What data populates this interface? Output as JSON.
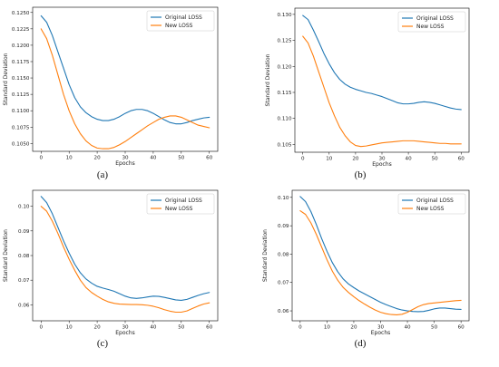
{
  "chart_data": [
    {
      "panel": "a",
      "caption": "(a)",
      "type": "line",
      "xlabel": "Epochs",
      "ylabel": "Standard Deviation",
      "xlim": [
        -3,
        63
      ],
      "ylim": [
        0.1038,
        0.1258
      ],
      "xticks": [
        0,
        10,
        20,
        30,
        40,
        50,
        60
      ],
      "yticks": [
        0.105,
        0.1075,
        0.11,
        0.1125,
        0.115,
        0.1175,
        0.12,
        0.1225,
        0.125
      ],
      "ytick_labels": [
        "0.1050",
        "0.1075",
        "0.1100",
        "0.1125",
        "0.1150",
        "0.1175",
        "0.1200",
        "0.1225",
        "0.1250"
      ],
      "legend": "top-right",
      "series": [
        {
          "name": "Original LOSS",
          "color": "#1f77b4",
          "x": [
            0,
            2,
            4,
            6,
            8,
            10,
            12,
            14,
            16,
            18,
            20,
            22,
            24,
            26,
            28,
            30,
            32,
            34,
            36,
            38,
            40,
            42,
            44,
            46,
            48,
            50,
            52,
            54,
            56,
            58,
            60
          ],
          "y": [
            0.1245,
            0.1235,
            0.1215,
            0.119,
            0.1165,
            0.114,
            0.112,
            0.1106,
            0.1097,
            0.1091,
            0.1087,
            0.1085,
            0.1085,
            0.1087,
            0.1091,
            0.1096,
            0.11,
            0.1102,
            0.1102,
            0.11,
            0.1096,
            0.1091,
            0.1086,
            0.1082,
            0.108,
            0.108,
            0.1082,
            0.1085,
            0.1087,
            0.1089,
            0.109
          ]
        },
        {
          "name": "New LOSS",
          "color": "#ff7f0e",
          "x": [
            0,
            2,
            4,
            6,
            8,
            10,
            12,
            14,
            16,
            18,
            20,
            22,
            24,
            26,
            28,
            30,
            32,
            34,
            36,
            38,
            40,
            42,
            44,
            46,
            48,
            50,
            52,
            54,
            56,
            58,
            60
          ],
          "y": [
            0.1225,
            0.121,
            0.1185,
            0.1155,
            0.1125,
            0.11,
            0.108,
            0.1065,
            0.1054,
            0.1047,
            0.1043,
            0.1042,
            0.1042,
            0.1044,
            0.1048,
            0.1053,
            0.1059,
            0.1065,
            0.1071,
            0.1077,
            0.1082,
            0.1087,
            0.109,
            0.1092,
            0.1092,
            0.109,
            0.1086,
            0.1082,
            0.1078,
            0.1076,
            0.1074
          ]
        }
      ]
    },
    {
      "panel": "b",
      "caption": "(b)",
      "type": "line",
      "xlabel": "Epochs",
      "ylabel": "Standard Deviation",
      "xlim": [
        -3,
        63
      ],
      "ylim": [
        0.1035,
        0.1312
      ],
      "xticks": [
        0,
        10,
        20,
        30,
        40,
        50,
        60
      ],
      "yticks": [
        0.105,
        0.11,
        0.115,
        0.12,
        0.125,
        0.13
      ],
      "ytick_labels": [
        "0.105",
        "0.110",
        "0.115",
        "0.120",
        "0.125",
        "0.130"
      ],
      "legend": "top-right",
      "series": [
        {
          "name": "Original LOSS",
          "color": "#1f77b4",
          "x": [
            0,
            2,
            4,
            6,
            8,
            10,
            12,
            14,
            16,
            18,
            20,
            22,
            24,
            26,
            28,
            30,
            32,
            34,
            36,
            38,
            40,
            42,
            44,
            46,
            48,
            50,
            52,
            54,
            56,
            58,
            60
          ],
          "y": [
            0.1298,
            0.129,
            0.127,
            0.1248,
            0.1225,
            0.1205,
            0.1188,
            0.1175,
            0.1166,
            0.116,
            0.1156,
            0.1153,
            0.115,
            0.1148,
            0.1145,
            0.1142,
            0.1138,
            0.1134,
            0.113,
            0.1128,
            0.1128,
            0.1129,
            0.1131,
            0.1132,
            0.1131,
            0.1129,
            0.1126,
            0.1123,
            0.112,
            0.1118,
            0.1117
          ]
        },
        {
          "name": "New LOSS",
          "color": "#ff7f0e",
          "x": [
            0,
            2,
            4,
            6,
            8,
            10,
            12,
            14,
            16,
            18,
            20,
            22,
            24,
            26,
            28,
            30,
            32,
            34,
            36,
            38,
            40,
            42,
            44,
            46,
            48,
            50,
            52,
            54,
            56,
            58,
            60
          ],
          "y": [
            0.1258,
            0.1245,
            0.122,
            0.119,
            0.116,
            0.113,
            0.1105,
            0.1083,
            0.1067,
            0.1055,
            0.1048,
            0.1046,
            0.1047,
            0.1049,
            0.1051,
            0.1053,
            0.1054,
            0.1055,
            0.1056,
            0.1057,
            0.1057,
            0.1057,
            0.1056,
            0.1055,
            0.1054,
            0.1053,
            0.1052,
            0.1052,
            0.1051,
            0.1051,
            0.1051
          ]
        }
      ]
    },
    {
      "panel": "c",
      "caption": "(c)",
      "type": "line",
      "xlabel": "Epochs",
      "ylabel": "Standard Deviation",
      "xlim": [
        -3,
        63
      ],
      "ylim": [
        0.0535,
        0.1065
      ],
      "xticks": [
        0,
        10,
        20,
        30,
        40,
        50,
        60
      ],
      "yticks": [
        0.06,
        0.07,
        0.08,
        0.09,
        0.1
      ],
      "ytick_labels": [
        "0.06",
        "0.07",
        "0.08",
        "0.09",
        "0.10"
      ],
      "legend": "top-right",
      "series": [
        {
          "name": "Original LOSS",
          "color": "#1f77b4",
          "x": [
            0,
            2,
            4,
            6,
            8,
            10,
            12,
            14,
            16,
            18,
            20,
            22,
            24,
            26,
            28,
            30,
            32,
            34,
            36,
            38,
            40,
            42,
            44,
            46,
            48,
            50,
            52,
            54,
            56,
            58,
            60
          ],
          "y": [
            0.104,
            0.1015,
            0.097,
            0.0915,
            0.086,
            0.081,
            0.0765,
            0.073,
            0.0705,
            0.0688,
            0.0675,
            0.0668,
            0.0662,
            0.0655,
            0.0645,
            0.0635,
            0.0628,
            0.0626,
            0.0628,
            0.0632,
            0.0635,
            0.0634,
            0.063,
            0.0625,
            0.062,
            0.0618,
            0.0622,
            0.063,
            0.0638,
            0.0645,
            0.065
          ]
        },
        {
          "name": "New LOSS",
          "color": "#ff7f0e",
          "x": [
            0,
            2,
            4,
            6,
            8,
            10,
            12,
            14,
            16,
            18,
            20,
            22,
            24,
            26,
            28,
            30,
            32,
            34,
            36,
            38,
            40,
            42,
            44,
            46,
            48,
            50,
            52,
            54,
            56,
            58,
            60
          ],
          "y": [
            0.1,
            0.098,
            0.094,
            0.089,
            0.0835,
            0.0785,
            0.074,
            0.07,
            0.067,
            0.065,
            0.0635,
            0.0622,
            0.0612,
            0.0606,
            0.0603,
            0.0602,
            0.0601,
            0.0601,
            0.06,
            0.0598,
            0.0594,
            0.0588,
            0.058,
            0.0574,
            0.057,
            0.057,
            0.0575,
            0.0585,
            0.0595,
            0.0603,
            0.0608
          ]
        }
      ]
    },
    {
      "panel": "d",
      "caption": "(d)",
      "type": "line",
      "xlabel": "Epochs",
      "ylabel": "Standard Deviation",
      "xlim": [
        -3,
        63
      ],
      "ylim": [
        0.0565,
        0.1025
      ],
      "xticks": [
        0,
        10,
        20,
        30,
        40,
        50,
        60
      ],
      "yticks": [
        0.06,
        0.07,
        0.08,
        0.09,
        0.1
      ],
      "ytick_labels": [
        "0.06",
        "0.07",
        "0.08",
        "0.09",
        "0.10"
      ],
      "legend": "top-right",
      "series": [
        {
          "name": "Original LOSS",
          "color": "#1f77b4",
          "x": [
            0,
            2,
            4,
            6,
            8,
            10,
            12,
            14,
            16,
            18,
            20,
            22,
            24,
            26,
            28,
            30,
            32,
            34,
            36,
            38,
            40,
            42,
            44,
            46,
            48,
            50,
            52,
            54,
            56,
            58,
            60
          ],
          "y": [
            0.1003,
            0.0985,
            0.095,
            0.0905,
            0.0855,
            0.081,
            0.077,
            0.0738,
            0.0713,
            0.0695,
            0.0682,
            0.067,
            0.066,
            0.065,
            0.064,
            0.063,
            0.0622,
            0.0615,
            0.0608,
            0.0603,
            0.06,
            0.0598,
            0.0597,
            0.0598,
            0.0602,
            0.0607,
            0.061,
            0.061,
            0.0608,
            0.0606,
            0.0605
          ]
        },
        {
          "name": "New LOSS",
          "color": "#ff7f0e",
          "x": [
            0,
            2,
            4,
            6,
            8,
            10,
            12,
            14,
            16,
            18,
            20,
            22,
            24,
            26,
            28,
            30,
            32,
            34,
            36,
            38,
            40,
            42,
            44,
            46,
            48,
            50,
            52,
            54,
            56,
            58,
            60
          ],
          "y": [
            0.0953,
            0.094,
            0.091,
            0.087,
            0.0825,
            0.078,
            0.074,
            0.0708,
            0.0683,
            0.0665,
            0.065,
            0.0636,
            0.0624,
            0.0613,
            0.0603,
            0.0595,
            0.059,
            0.0587,
            0.0586,
            0.0588,
            0.0595,
            0.0605,
            0.0615,
            0.0622,
            0.0626,
            0.0628,
            0.063,
            0.0632,
            0.0634,
            0.0636,
            0.0637
          ]
        }
      ]
    }
  ]
}
